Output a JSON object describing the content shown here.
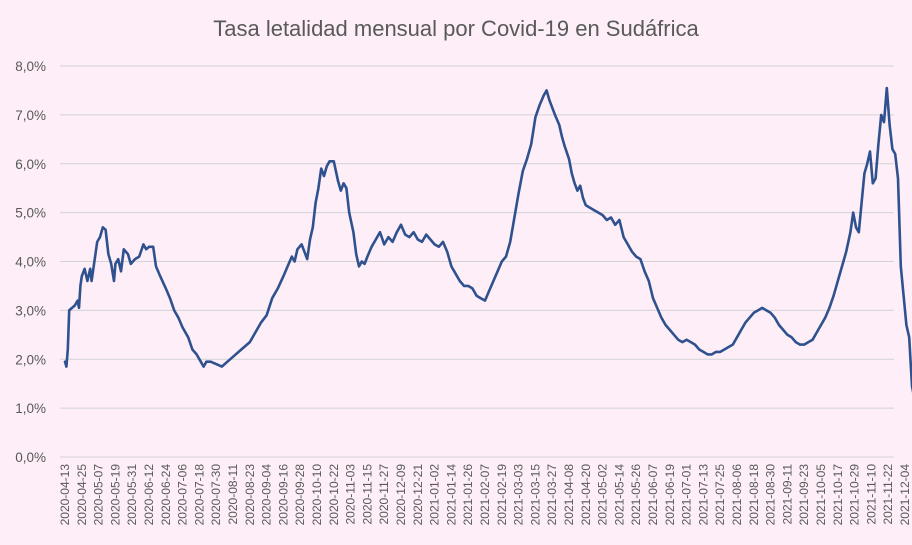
{
  "chart_data": {
    "type": "line",
    "title": "Tasa letalidad mensual por Covid-19 en Sudáfrica",
    "xlabel": "",
    "ylabel": "",
    "ylim": [
      0,
      8
    ],
    "y_ticks": [
      "0,0%",
      "1,0%",
      "2,0%",
      "3,0%",
      "4,0%",
      "5,0%",
      "6,0%",
      "7,0%",
      "8,0%"
    ],
    "x_ticks": [
      "2020-04-13",
      "2020-04-25",
      "2020-05-07",
      "2020-05-19",
      "2020-05-31",
      "2020-06-12",
      "2020-06-24",
      "2020-07-06",
      "2020-07-18",
      "2020-07-30",
      "2020-08-11",
      "2020-08-23",
      "2020-09-04",
      "2020-09-16",
      "2020-09-28",
      "2020-10-10",
      "2020-10-22",
      "2020-11-03",
      "2020-11-15",
      "2020-11-27",
      "2020-12-09",
      "2020-12-21",
      "2021-01-02",
      "2021-01-14",
      "2021-01-26",
      "2021-02-07",
      "2021-02-19",
      "2021-03-03",
      "2021-03-15",
      "2021-03-27",
      "2021-04-08",
      "2021-04-20",
      "2021-05-02",
      "2021-05-14",
      "2021-05-26",
      "2021-06-07",
      "2021-06-19",
      "2021-07-01",
      "2021-07-13",
      "2021-07-25",
      "2021-08-06",
      "2021-08-18",
      "2021-08-30",
      "2021-09-11",
      "2021-09-23",
      "2021-10-05",
      "2021-10-17",
      "2021-10-29",
      "2021-11-10",
      "2021-11-22",
      "2021-12-04"
    ],
    "grid": true,
    "legend": "none",
    "series": [
      {
        "color": "#2f528f",
        "points": [
          [
            "2020-04-13",
            1.95
          ],
          [
            "2020-04-14",
            1.85
          ],
          [
            "2020-04-15",
            2.2
          ],
          [
            "2020-04-16",
            3.0
          ],
          [
            "2020-04-18",
            3.05
          ],
          [
            "2020-04-20",
            3.1
          ],
          [
            "2020-04-22",
            3.2
          ],
          [
            "2020-04-23",
            3.05
          ],
          [
            "2020-04-24",
            3.5
          ],
          [
            "2020-04-25",
            3.7
          ],
          [
            "2020-04-27",
            3.85
          ],
          [
            "2020-04-29",
            3.6
          ],
          [
            "2020-05-01",
            3.85
          ],
          [
            "2020-05-02",
            3.6
          ],
          [
            "2020-05-04",
            4.0
          ],
          [
            "2020-05-06",
            4.4
          ],
          [
            "2020-05-08",
            4.5
          ],
          [
            "2020-05-10",
            4.7
          ],
          [
            "2020-05-12",
            4.65
          ],
          [
            "2020-05-14",
            4.15
          ],
          [
            "2020-05-16",
            3.95
          ],
          [
            "2020-05-18",
            3.6
          ],
          [
            "2020-05-19",
            3.95
          ],
          [
            "2020-05-21",
            4.05
          ],
          [
            "2020-05-23",
            3.8
          ],
          [
            "2020-05-25",
            4.25
          ],
          [
            "2020-05-28",
            4.15
          ],
          [
            "2020-05-30",
            3.95
          ],
          [
            "2020-06-02",
            4.05
          ],
          [
            "2020-06-05",
            4.1
          ],
          [
            "2020-06-08",
            4.35
          ],
          [
            "2020-06-10",
            4.25
          ],
          [
            "2020-06-12",
            4.3
          ],
          [
            "2020-06-15",
            4.3
          ],
          [
            "2020-06-17",
            3.9
          ],
          [
            "2020-06-20",
            3.7
          ],
          [
            "2020-06-24",
            3.45
          ],
          [
            "2020-06-27",
            3.25
          ],
          [
            "2020-06-30",
            3.0
          ],
          [
            "2020-07-03",
            2.85
          ],
          [
            "2020-07-06",
            2.65
          ],
          [
            "2020-07-10",
            2.45
          ],
          [
            "2020-07-13",
            2.2
          ],
          [
            "2020-07-16",
            2.1
          ],
          [
            "2020-07-19",
            1.95
          ],
          [
            "2020-07-21",
            1.85
          ],
          [
            "2020-07-23",
            1.95
          ],
          [
            "2020-07-26",
            1.95
          ],
          [
            "2020-07-30",
            1.9
          ],
          [
            "2020-08-03",
            1.85
          ],
          [
            "2020-08-07",
            1.95
          ],
          [
            "2020-08-11",
            2.05
          ],
          [
            "2020-08-15",
            2.15
          ],
          [
            "2020-08-19",
            2.25
          ],
          [
            "2020-08-23",
            2.35
          ],
          [
            "2020-08-27",
            2.55
          ],
          [
            "2020-08-31",
            2.75
          ],
          [
            "2020-09-04",
            2.9
          ],
          [
            "2020-09-08",
            3.25
          ],
          [
            "2020-09-12",
            3.45
          ],
          [
            "2020-09-16",
            3.7
          ],
          [
            "2020-09-19",
            3.9
          ],
          [
            "2020-09-22",
            4.1
          ],
          [
            "2020-09-24",
            4.0
          ],
          [
            "2020-09-26",
            4.25
          ],
          [
            "2020-09-29",
            4.35
          ],
          [
            "2020-10-01",
            4.2
          ],
          [
            "2020-10-03",
            4.05
          ],
          [
            "2020-10-05",
            4.45
          ],
          [
            "2020-10-07",
            4.7
          ],
          [
            "2020-10-09",
            5.2
          ],
          [
            "2020-10-11",
            5.5
          ],
          [
            "2020-10-13",
            5.9
          ],
          [
            "2020-10-15",
            5.75
          ],
          [
            "2020-10-17",
            5.95
          ],
          [
            "2020-10-19",
            6.05
          ],
          [
            "2020-10-22",
            6.05
          ],
          [
            "2020-10-25",
            5.65
          ],
          [
            "2020-10-27",
            5.45
          ],
          [
            "2020-10-29",
            5.6
          ],
          [
            "2020-10-31",
            5.5
          ],
          [
            "2020-11-02",
            5.0
          ],
          [
            "2020-11-05",
            4.6
          ],
          [
            "2020-11-07",
            4.15
          ],
          [
            "2020-11-09",
            3.9
          ],
          [
            "2020-11-11",
            4.0
          ],
          [
            "2020-11-13",
            3.95
          ],
          [
            "2020-11-15",
            4.1
          ],
          [
            "2020-11-18",
            4.3
          ],
          [
            "2020-11-21",
            4.45
          ],
          [
            "2020-11-24",
            4.6
          ],
          [
            "2020-11-27",
            4.35
          ],
          [
            "2020-11-30",
            4.5
          ],
          [
            "2020-12-03",
            4.4
          ],
          [
            "2020-12-06",
            4.6
          ],
          [
            "2020-12-09",
            4.75
          ],
          [
            "2020-12-12",
            4.55
          ],
          [
            "2020-12-15",
            4.5
          ],
          [
            "2020-12-18",
            4.6
          ],
          [
            "2020-12-21",
            4.45
          ],
          [
            "2020-12-24",
            4.4
          ],
          [
            "2020-12-27",
            4.55
          ],
          [
            "2020-12-30",
            4.45
          ],
          [
            "2021-01-02",
            4.35
          ],
          [
            "2021-01-05",
            4.3
          ],
          [
            "2021-01-08",
            4.4
          ],
          [
            "2021-01-11",
            4.2
          ],
          [
            "2021-01-14",
            3.9
          ],
          [
            "2021-01-17",
            3.75
          ],
          [
            "2021-01-20",
            3.6
          ],
          [
            "2021-01-23",
            3.5
          ],
          [
            "2021-01-26",
            3.5
          ],
          [
            "2021-01-29",
            3.45
          ],
          [
            "2021-02-01",
            3.3
          ],
          [
            "2021-02-04",
            3.25
          ],
          [
            "2021-02-07",
            3.2
          ],
          [
            "2021-02-10",
            3.4
          ],
          [
            "2021-02-13",
            3.6
          ],
          [
            "2021-02-16",
            3.8
          ],
          [
            "2021-02-19",
            4.0
          ],
          [
            "2021-02-22",
            4.1
          ],
          [
            "2021-02-25",
            4.4
          ],
          [
            "2021-02-28",
            4.9
          ],
          [
            "2021-03-03",
            5.4
          ],
          [
            "2021-03-06",
            5.85
          ],
          [
            "2021-03-09",
            6.1
          ],
          [
            "2021-03-12",
            6.4
          ],
          [
            "2021-03-15",
            6.95
          ],
          [
            "2021-03-18",
            7.2
          ],
          [
            "2021-03-21",
            7.4
          ],
          [
            "2021-03-23",
            7.5
          ],
          [
            "2021-03-25",
            7.3
          ],
          [
            "2021-03-27",
            7.15
          ],
          [
            "2021-03-29",
            7.0
          ],
          [
            "2021-04-01",
            6.8
          ],
          [
            "2021-04-03",
            6.55
          ],
          [
            "2021-04-05",
            6.35
          ],
          [
            "2021-04-08",
            6.1
          ],
          [
            "2021-04-10",
            5.8
          ],
          [
            "2021-04-12",
            5.6
          ],
          [
            "2021-04-14",
            5.45
          ],
          [
            "2021-04-16",
            5.55
          ],
          [
            "2021-04-18",
            5.3
          ],
          [
            "2021-04-20",
            5.15
          ],
          [
            "2021-04-23",
            5.1
          ],
          [
            "2021-04-26",
            5.05
          ],
          [
            "2021-04-29",
            5.0
          ],
          [
            "2021-05-02",
            4.95
          ],
          [
            "2021-05-05",
            4.85
          ],
          [
            "2021-05-08",
            4.9
          ],
          [
            "2021-05-11",
            4.75
          ],
          [
            "2021-05-14",
            4.85
          ],
          [
            "2021-05-17",
            4.5
          ],
          [
            "2021-05-20",
            4.35
          ],
          [
            "2021-05-23",
            4.2
          ],
          [
            "2021-05-26",
            4.1
          ],
          [
            "2021-05-29",
            4.05
          ],
          [
            "2021-06-01",
            3.8
          ],
          [
            "2021-06-04",
            3.6
          ],
          [
            "2021-06-07",
            3.25
          ],
          [
            "2021-06-10",
            3.05
          ],
          [
            "2021-06-13",
            2.85
          ],
          [
            "2021-06-16",
            2.7
          ],
          [
            "2021-06-19",
            2.6
          ],
          [
            "2021-06-22",
            2.5
          ],
          [
            "2021-06-25",
            2.4
          ],
          [
            "2021-06-28",
            2.35
          ],
          [
            "2021-07-01",
            2.4
          ],
          [
            "2021-07-04",
            2.35
          ],
          [
            "2021-07-07",
            2.3
          ],
          [
            "2021-07-10",
            2.2
          ],
          [
            "2021-07-13",
            2.15
          ],
          [
            "2021-07-16",
            2.1
          ],
          [
            "2021-07-19",
            2.1
          ],
          [
            "2021-07-22",
            2.15
          ],
          [
            "2021-07-25",
            2.15
          ],
          [
            "2021-07-28",
            2.2
          ],
          [
            "2021-07-31",
            2.25
          ],
          [
            "2021-08-03",
            2.3
          ],
          [
            "2021-08-06",
            2.45
          ],
          [
            "2021-08-09",
            2.6
          ],
          [
            "2021-08-12",
            2.75
          ],
          [
            "2021-08-15",
            2.85
          ],
          [
            "2021-08-18",
            2.95
          ],
          [
            "2021-08-21",
            3.0
          ],
          [
            "2021-08-24",
            3.05
          ],
          [
            "2021-08-27",
            3.0
          ],
          [
            "2021-08-30",
            2.95
          ],
          [
            "2021-09-02",
            2.85
          ],
          [
            "2021-09-05",
            2.7
          ],
          [
            "2021-09-08",
            2.6
          ],
          [
            "2021-09-11",
            2.5
          ],
          [
            "2021-09-14",
            2.45
          ],
          [
            "2021-09-17",
            2.35
          ],
          [
            "2021-09-20",
            2.3
          ],
          [
            "2021-09-23",
            2.3
          ],
          [
            "2021-09-26",
            2.35
          ],
          [
            "2021-09-29",
            2.4
          ],
          [
            "2021-10-02",
            2.55
          ],
          [
            "2021-10-05",
            2.7
          ],
          [
            "2021-10-08",
            2.85
          ],
          [
            "2021-10-11",
            3.05
          ],
          [
            "2021-10-14",
            3.3
          ],
          [
            "2021-10-17",
            3.6
          ],
          [
            "2021-10-20",
            3.9
          ],
          [
            "2021-10-23",
            4.2
          ],
          [
            "2021-10-26",
            4.6
          ],
          [
            "2021-10-28",
            5.0
          ],
          [
            "2021-10-30",
            4.7
          ],
          [
            "2021-11-01",
            4.6
          ],
          [
            "2021-11-03",
            5.2
          ],
          [
            "2021-11-05",
            5.8
          ],
          [
            "2021-11-07",
            6.0
          ],
          [
            "2021-11-09",
            6.25
          ],
          [
            "2021-11-11",
            5.6
          ],
          [
            "2021-11-13",
            5.7
          ],
          [
            "2021-11-15",
            6.4
          ],
          [
            "2021-11-17",
            7.0
          ],
          [
            "2021-11-19",
            6.85
          ],
          [
            "2021-11-21",
            7.55
          ],
          [
            "2021-11-23",
            6.8
          ],
          [
            "2021-11-25",
            6.3
          ],
          [
            "2021-11-27",
            6.2
          ],
          [
            "2021-11-29",
            5.7
          ],
          [
            "2021-12-01",
            3.9
          ],
          [
            "2021-12-03",
            3.3
          ],
          [
            "2021-12-05",
            2.7
          ],
          [
            "2021-12-07",
            2.45
          ],
          [
            "2021-12-09",
            1.45
          ],
          [
            "2021-12-11",
            1.15
          ]
        ]
      }
    ]
  }
}
